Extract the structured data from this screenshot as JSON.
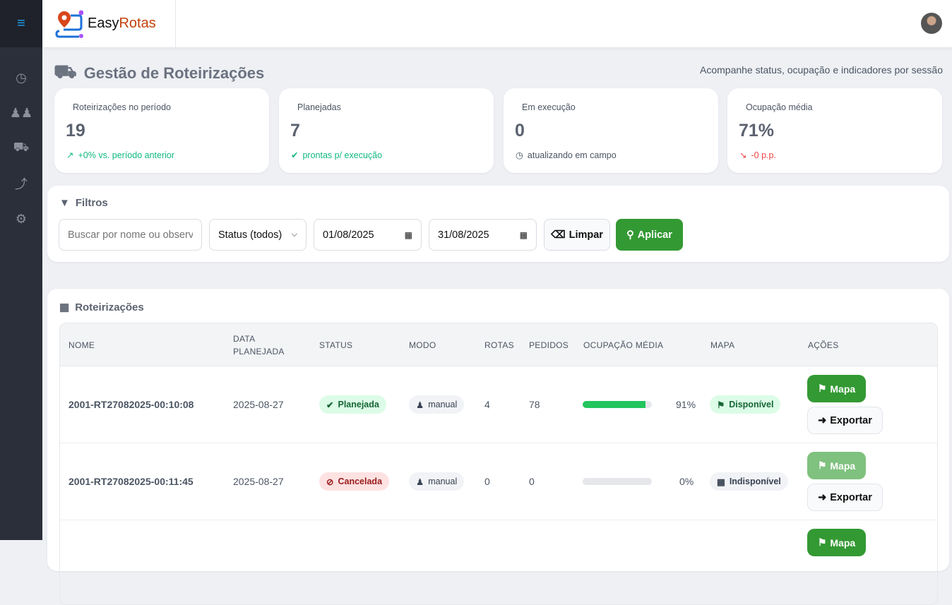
{
  "app": {
    "brand_a": "Easy",
    "brand_b": "Rotas"
  },
  "page": {
    "title": "Gestão de Roteirizações",
    "subtitle": "Acompanhe status, ocupação e indicadores por sessão"
  },
  "cards": [
    {
      "label": "Roteirizações no período",
      "value": "19",
      "sub": "+0% vs. período anterior",
      "sub_icon": "trend-up-icon",
      "color": "#10b981"
    },
    {
      "label": "Planejadas",
      "value": "7",
      "sub": "prontas p/ execução",
      "sub_icon": "check-circle-icon",
      "color": "#10b981"
    },
    {
      "label": "Em execução",
      "value": "0",
      "sub": "atualizando em campo",
      "sub_icon": "clock-icon",
      "color": "#4b5563"
    },
    {
      "label": "Ocupação média",
      "value": "71%",
      "sub": "-0 p.p.",
      "sub_icon": "trend-down-icon",
      "color": "#ef4444"
    }
  ],
  "filters": {
    "title": "Filtros",
    "search_placeholder": "Buscar por nome ou observação",
    "status": "Status (todos)",
    "date_from": "01/08/2025",
    "date_to": "31/08/2025",
    "clear": "Limpar",
    "apply": "Aplicar"
  },
  "table": {
    "title": "Roteirizações",
    "headers": [
      "NOME",
      "DATA PLANEJADA",
      "STATUS",
      "MODO",
      "ROTAS",
      "PEDIDOS",
      "OCUPAÇÃO MÉDIA",
      "MAPA",
      "AÇÕES"
    ],
    "rows": [
      {
        "name": "2001-RT27082025-00:10:08",
        "date": "2025-08-27",
        "status": "Planejada",
        "mode": "manual",
        "routes": "4",
        "orders": "78",
        "occupancy": 91,
        "occupancy_label": "91%",
        "map": "Disponível",
        "map_btn": "Mapa",
        "export_btn": "Exportar"
      },
      {
        "name": "2001-RT27082025-00:11:45",
        "date": "2025-08-27",
        "status": "Cancelada",
        "mode": "manual",
        "routes": "0",
        "orders": "0",
        "occupancy": 0,
        "occupancy_label": "0%",
        "map": "Indisponível",
        "map_btn": "Mapa",
        "export_btn": "Exportar"
      },
      {
        "map_btn": "Mapa"
      }
    ]
  },
  "colors": {
    "primary": "#339933",
    "sidebar": "#2b2f3a"
  }
}
